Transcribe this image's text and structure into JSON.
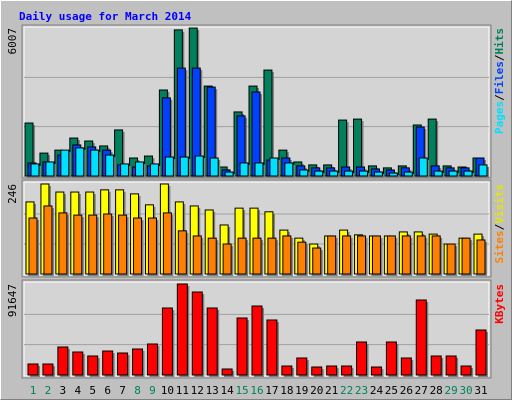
{
  "chart_data": [
    {
      "type": "bar",
      "title": "Daily usage for March 2014",
      "legend_separator": "/",
      "ylim": [
        0,
        6007
      ],
      "yticks": [
        6007
      ],
      "grid": true,
      "series": [
        {
          "name": "Hits",
          "color": "#00805c",
          "values": [
            2150,
            930,
            1050,
            1540,
            1420,
            1220,
            1870,
            730,
            810,
            3490,
            5930,
            6007,
            3650,
            365,
            2600,
            3650,
            4300,
            1050,
            570,
            450,
            450,
            2270,
            2310,
            410,
            330,
            410,
            2070,
            2310,
            410,
            365,
            730
          ]
        },
        {
          "name": "Files",
          "color": "#0040ff",
          "values": [
            530,
            570,
            850,
            1260,
            1180,
            1050,
            450,
            365,
            410,
            3170,
            4380,
            4380,
            3610,
            245,
            2440,
            3410,
            650,
            730,
            410,
            330,
            330,
            365,
            365,
            285,
            245,
            330,
            1990,
            410,
            330,
            330,
            730
          ]
        },
        {
          "name": "Pages",
          "color": "#00e0ff",
          "values": [
            490,
            570,
            1050,
            1140,
            1050,
            850,
            490,
            570,
            490,
            770,
            770,
            810,
            730,
            160,
            530,
            530,
            730,
            530,
            245,
            200,
            200,
            200,
            200,
            160,
            120,
            160,
            730,
            200,
            200,
            200,
            450
          ]
        }
      ]
    },
    {
      "type": "bar",
      "legend_separator": "/",
      "ylim": [
        0,
        246
      ],
      "yticks": [
        246
      ],
      "grid": true,
      "series": [
        {
          "name": "Visits",
          "color": "#ffff00",
          "values": [
            197,
            246,
            224,
            224,
            224,
            230,
            230,
            219,
            189,
            246,
            197,
            186,
            175,
            134,
            180,
            180,
            170,
            120,
            98,
            82,
            104,
            120,
            107,
            104,
            104,
            115,
            115,
            109,
            82,
            98,
            109
          ]
        },
        {
          "name": "Sites",
          "color": "#ff8000",
          "values": [
            153,
            186,
            167,
            161,
            161,
            164,
            161,
            153,
            153,
            167,
            118,
            104,
            98,
            82,
            98,
            98,
            98,
            104,
            87,
            71,
            104,
            104,
            104,
            104,
            104,
            104,
            104,
            104,
            82,
            98,
            93
          ]
        }
      ]
    },
    {
      "type": "bar",
      "ylim": [
        0,
        91647
      ],
      "yticks": [
        91647
      ],
      "grid": true,
      "categories": [
        "1",
        "2",
        "3",
        "4",
        "5",
        "6",
        "7",
        "8",
        "9",
        "10",
        "11",
        "12",
        "13",
        "14",
        "15",
        "16",
        "17",
        "18",
        "19",
        "20",
        "21",
        "22",
        "23",
        "24",
        "25",
        "26",
        "27",
        "28",
        "29",
        "30",
        "31"
      ],
      "category_colors": [
        "#00805c",
        "#00805c",
        "#000000",
        "#000000",
        "#000000",
        "#000000",
        "#000000",
        "#00805c",
        "#00805c",
        "#000000",
        "#000000",
        "#000000",
        "#000000",
        "#000000",
        "#00805c",
        "#00805c",
        "#000000",
        "#000000",
        "#000000",
        "#000000",
        "#000000",
        "#00805c",
        "#00805c",
        "#000000",
        "#000000",
        "#000000",
        "#000000",
        "#000000",
        "#00805c",
        "#00805c",
        "#000000"
      ],
      "series": [
        {
          "name": "KBytes",
          "color": "#ff0000",
          "values": [
            11080,
            11080,
            28200,
            23160,
            19140,
            24170,
            22160,
            26190,
            31220,
            67480,
            91647,
            83590,
            67480,
            6040,
            57410,
            69490,
            55390,
            9060,
            17120,
            8060,
            9060,
            9060,
            33230,
            8060,
            33230,
            17120,
            75530,
            19140,
            19140,
            9060,
            45320
          ]
        }
      ]
    }
  ]
}
